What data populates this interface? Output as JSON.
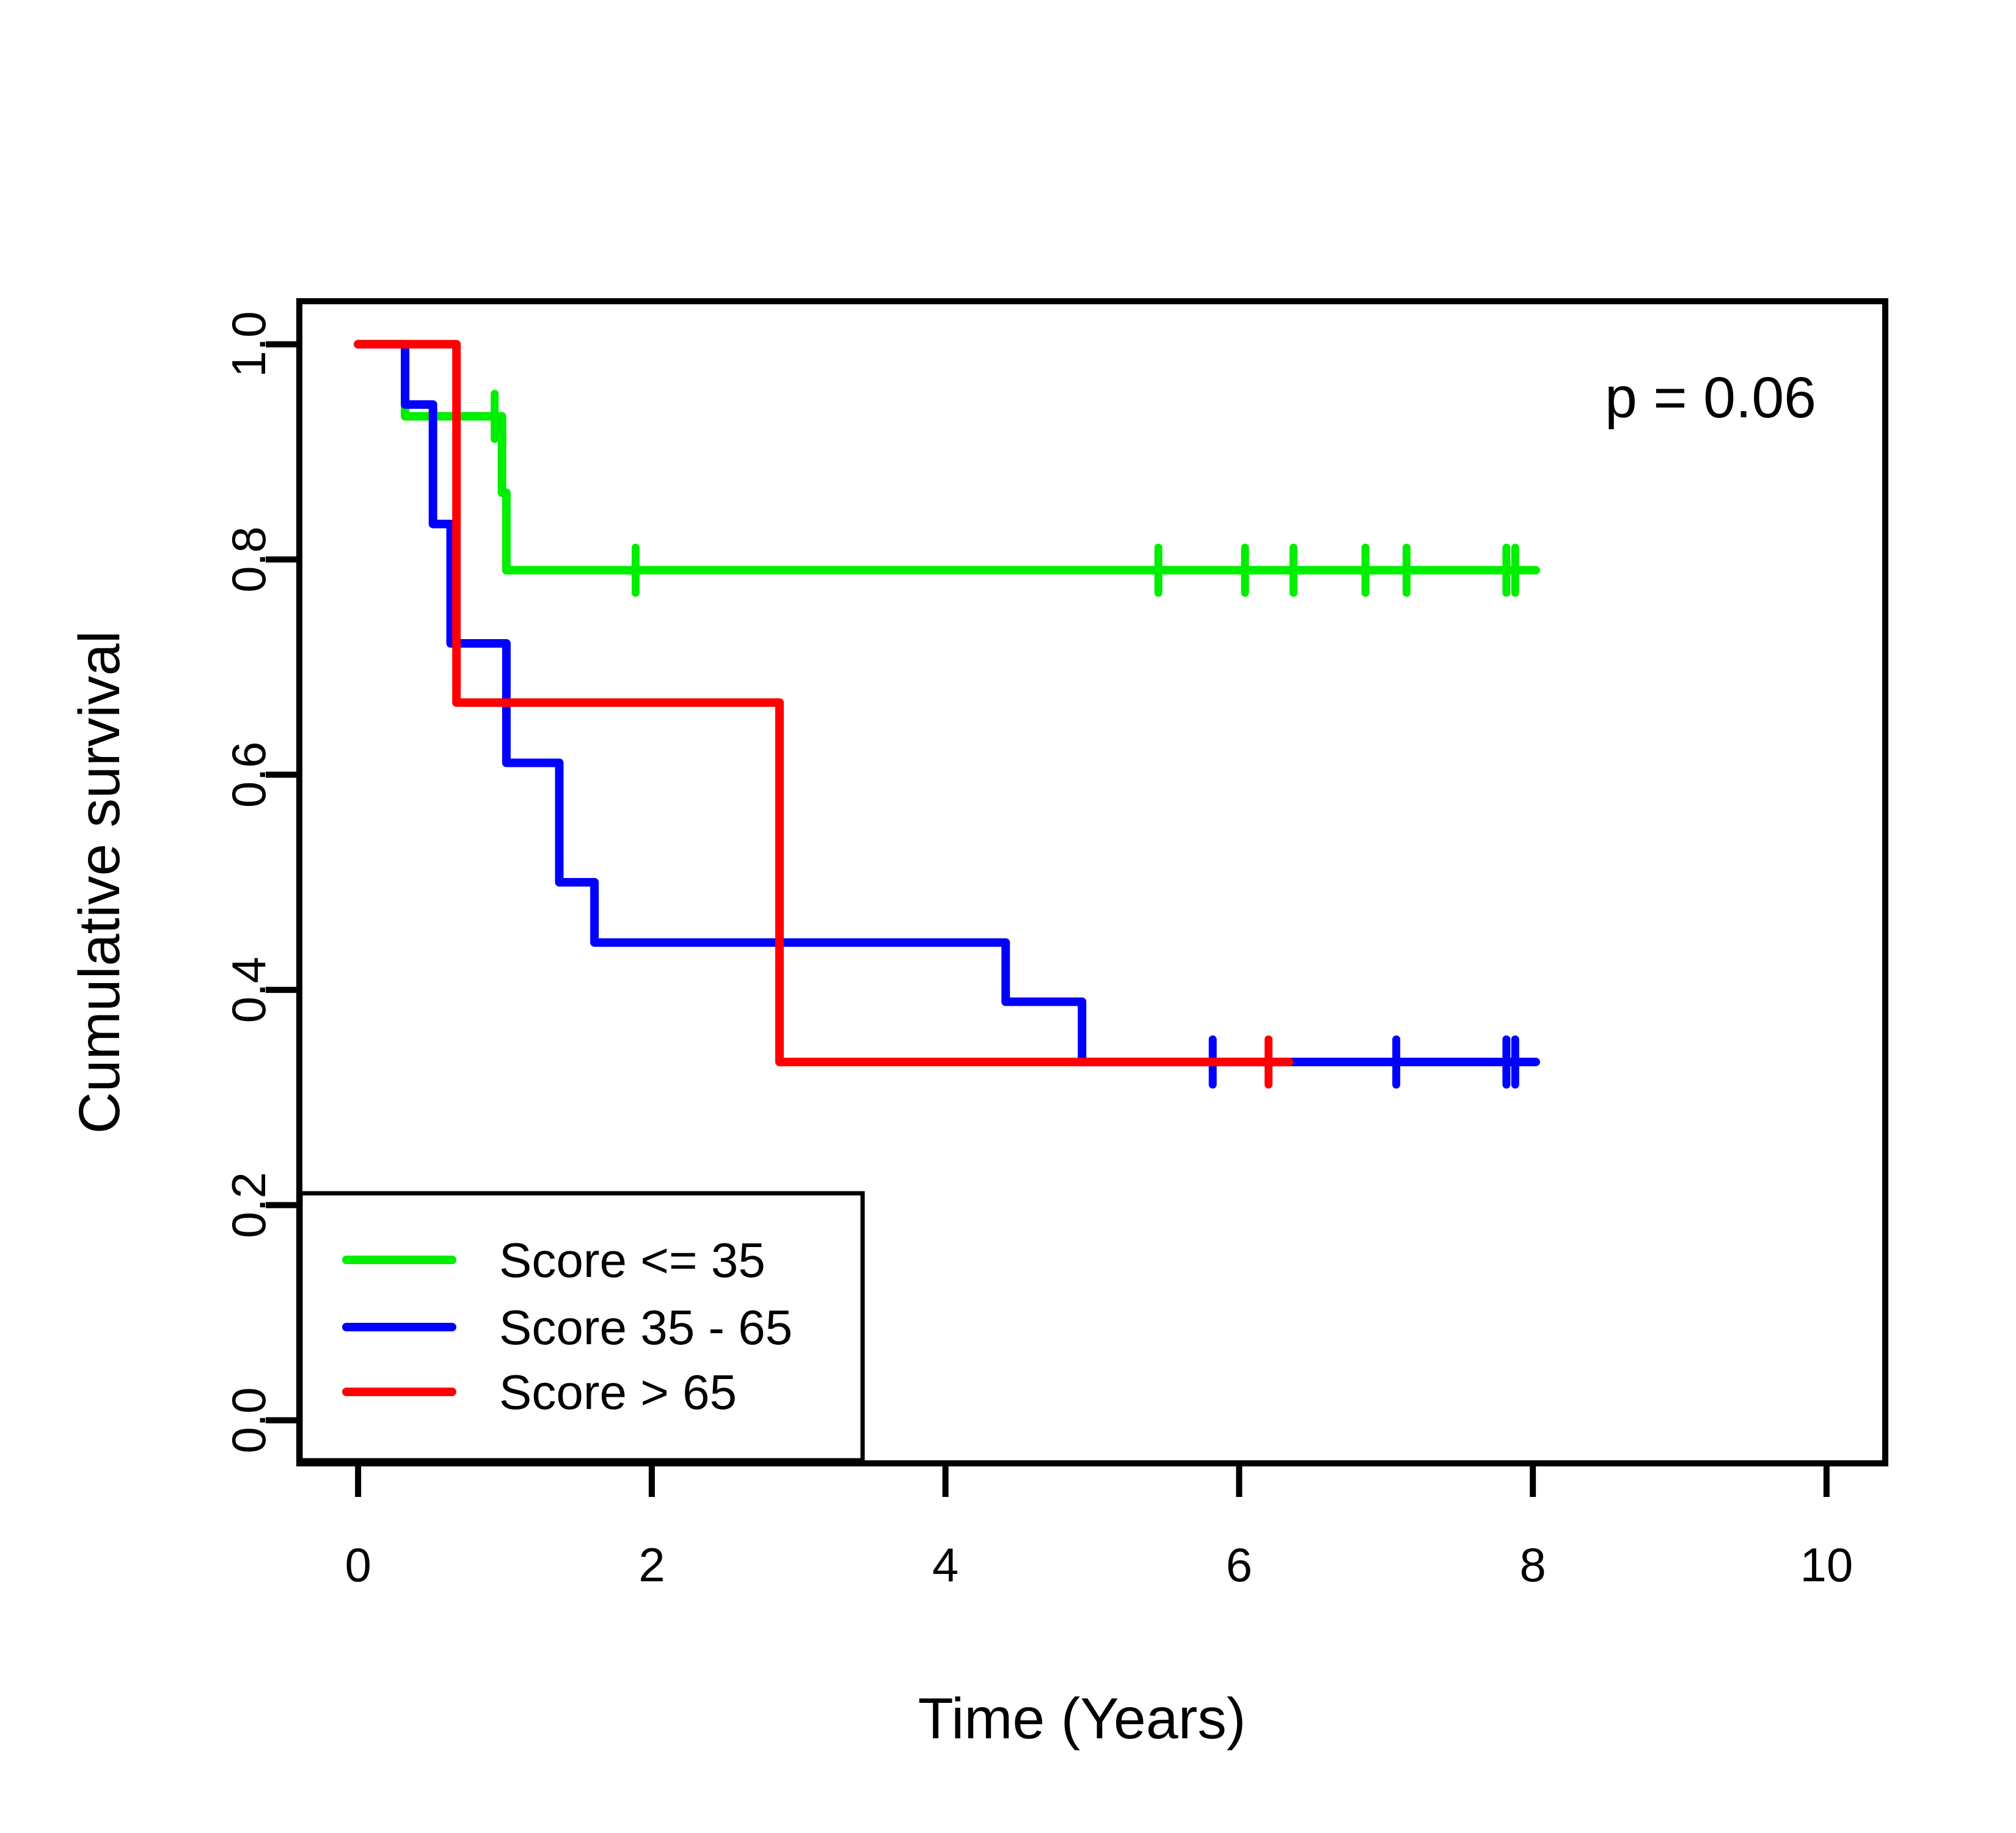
{
  "chart_data": {
    "type": "line",
    "subtype": "kaplan-meier-step",
    "title": "",
    "xlabel": "Time (Years)",
    "ylabel": "Cumulative survival",
    "annotation": "p = 0.06",
    "xlim": [
      0,
      10
    ],
    "ylim": [
      0.0,
      1.0
    ],
    "x_ticks": [
      0,
      2,
      4,
      6,
      8,
      10
    ],
    "y_ticks": [
      0.0,
      0.2,
      0.4,
      0.6,
      0.8,
      1.0
    ],
    "grid": false,
    "legend_position": "bottom-left",
    "axis_color": "#000000",
    "series": [
      {
        "name": "Score <= 35",
        "color": "#00EE00",
        "start_survival": 1.0,
        "steps": [
          [
            0.32,
            0.933
          ],
          [
            0.98,
            0.862
          ],
          [
            1.01,
            0.79
          ]
        ],
        "end_time": 8.02,
        "censors": [
          [
            0.93,
            0.933
          ],
          [
            1.89,
            0.79
          ],
          [
            5.45,
            0.79
          ],
          [
            6.04,
            0.79
          ],
          [
            6.37,
            0.79
          ],
          [
            6.86,
            0.79
          ],
          [
            7.14,
            0.79
          ],
          [
            7.82,
            0.79
          ],
          [
            7.88,
            0.79
          ]
        ]
      },
      {
        "name": "Score 35 - 65",
        "color": "#0000FF",
        "start_survival": 1.0,
        "steps": [
          [
            0.32,
            0.944
          ],
          [
            0.51,
            0.833
          ],
          [
            0.63,
            0.722
          ],
          [
            1.01,
            0.611
          ],
          [
            1.37,
            0.5
          ],
          [
            1.61,
            0.444
          ],
          [
            4.41,
            0.389
          ],
          [
            4.93,
            0.333
          ]
        ],
        "end_time": 8.02,
        "censors": [
          [
            5.82,
            0.333
          ],
          [
            7.07,
            0.333
          ],
          [
            7.82,
            0.333
          ],
          [
            7.88,
            0.333
          ]
        ]
      },
      {
        "name": "Score > 65",
        "color": "#FF0000",
        "start_survival": 1.0,
        "steps": [
          [
            0.67,
            0.667
          ],
          [
            2.87,
            0.333
          ]
        ],
        "end_time": 6.34,
        "censors": [
          [
            6.2,
            0.333
          ]
        ]
      }
    ]
  }
}
